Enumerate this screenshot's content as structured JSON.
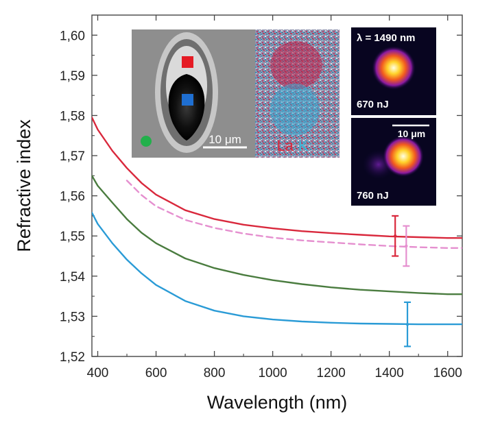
{
  "chart_data": {
    "type": "line",
    "title": "",
    "xlabel": "Wavelength (nm)",
    "ylabel": "Refractive index",
    "xlim": [
      380,
      1650
    ],
    "ylim": [
      1.52,
      1.605
    ],
    "x_ticks": [
      400,
      600,
      800,
      1000,
      1200,
      1400,
      1600
    ],
    "y_ticks": [
      1.52,
      1.53,
      1.54,
      1.55,
      1.56,
      1.57,
      1.58,
      1.59,
      1.6
    ],
    "y_tick_labels": [
      "1,52",
      "1,53",
      "1,54",
      "1,55",
      "1,56",
      "1,57",
      "1,58",
      "1,59",
      "1,60"
    ],
    "grid": false,
    "legend": "none",
    "series": [
      {
        "color": "#d9283c",
        "style": "solid",
        "x": [
          380,
          400,
          450,
          500,
          550,
          600,
          700,
          800,
          900,
          1000,
          1100,
          1200,
          1300,
          1400,
          1500,
          1600,
          1650
        ],
        "y": [
          1.5795,
          1.5765,
          1.5712,
          1.5669,
          1.5632,
          1.5603,
          1.5564,
          1.5542,
          1.5528,
          1.5519,
          1.5512,
          1.5507,
          1.5503,
          1.5499,
          1.5497,
          1.5495,
          1.5495
        ],
        "error_bars": [
          {
            "x": 1420,
            "y": 1.55,
            "err": 0.005
          }
        ]
      },
      {
        "color": "#e58fcf",
        "style": "dashed",
        "x": [
          500,
          550,
          600,
          700,
          800,
          900,
          1000,
          1100,
          1200,
          1300,
          1400,
          1500,
          1600,
          1650
        ],
        "y": [
          1.5638,
          1.5602,
          1.5574,
          1.554,
          1.552,
          1.5506,
          1.5496,
          1.5489,
          1.5484,
          1.5479,
          1.5475,
          1.5472,
          1.547,
          1.547
        ],
        "error_bars": [
          {
            "x": 1458,
            "y": 1.5475,
            "err": 0.005
          }
        ]
      },
      {
        "color": "#4a7c3f",
        "style": "solid",
        "x": [
          380,
          400,
          450,
          500,
          550,
          600,
          700,
          800,
          900,
          1000,
          1100,
          1200,
          1300,
          1400,
          1500,
          1600,
          1650
        ],
        "y": [
          1.565,
          1.5625,
          1.5583,
          1.5542,
          1.5508,
          1.5482,
          1.5444,
          1.542,
          1.5403,
          1.539,
          1.538,
          1.5372,
          1.5366,
          1.5362,
          1.5358,
          1.5355,
          1.5355
        ]
      },
      {
        "color": "#2a9bd6",
        "style": "solid",
        "x": [
          380,
          400,
          450,
          500,
          550,
          600,
          700,
          800,
          900,
          1000,
          1100,
          1200,
          1300,
          1400,
          1500,
          1600,
          1650
        ],
        "y": [
          1.5558,
          1.553,
          1.5482,
          1.5441,
          1.5407,
          1.5378,
          1.5338,
          1.5314,
          1.53,
          1.5292,
          1.5287,
          1.5284,
          1.5282,
          1.5281,
          1.528,
          1.528,
          1.528
        ],
        "error_bars": [
          {
            "x": 1462,
            "y": 1.528,
            "err": 0.0055
          }
        ]
      }
    ],
    "insets": {
      "microscope": {
        "scale_bar": "10 μm",
        "markers": [
          {
            "shape": "square",
            "color": "#e51b24"
          },
          {
            "shape": "square",
            "color": "#1f6fd1"
          },
          {
            "shape": "circle",
            "color": "#22b04b"
          }
        ]
      },
      "composition_map": {
        "label_1": "La",
        "label_1_color": "#d9283c",
        "label_2": "K",
        "label_2_color": "#3db6d8"
      },
      "mode_top": {
        "wavelength_label": "λ = 1490 nm",
        "energy_label": "670 nJ"
      },
      "mode_bottom": {
        "scale_bar": "10 μm",
        "energy_label": "760 nJ"
      }
    }
  }
}
